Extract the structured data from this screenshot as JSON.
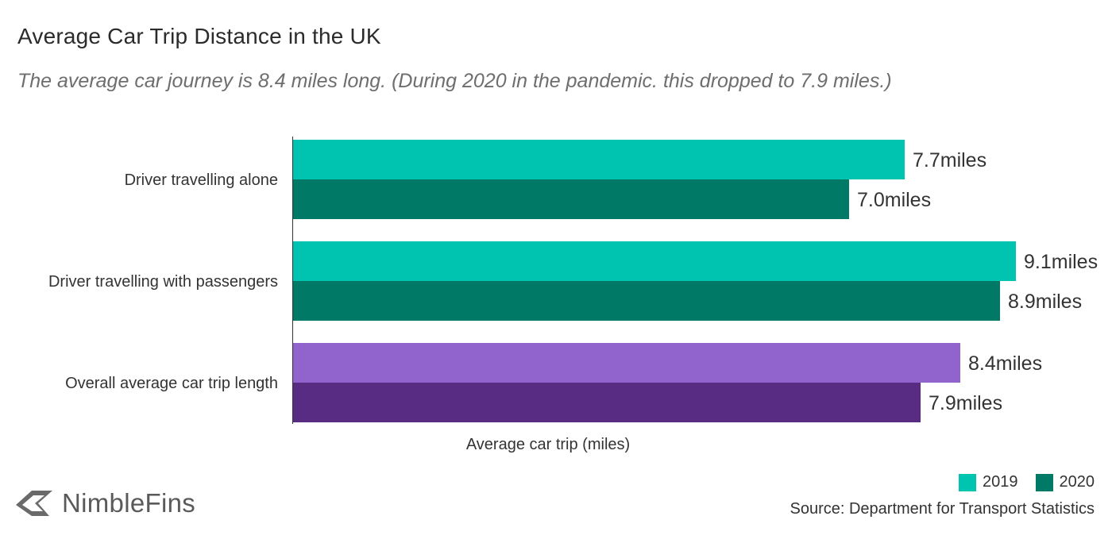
{
  "title": "Average Car Trip Distance in the UK",
  "subtitle": "The average car journey is 8.4 miles long. (During 2020 in the pandemic. this dropped to 7.9 miles.)",
  "brand": "NimbleFins",
  "source": "Source: Department for Transport Statistics",
  "legend": [
    {
      "label": "2019",
      "color": "#00c4b0"
    },
    {
      "label": "2020",
      "color": "#007a66"
    }
  ],
  "chart_data": {
    "type": "bar",
    "orientation": "horizontal",
    "xlabel": "Average car trip (miles)",
    "xlim": [
      0,
      9.3
    ],
    "unit_suffix": "miles",
    "categories": [
      "Driver travelling alone",
      "Driver travelling with passengers",
      "Overall average car trip length"
    ],
    "series": [
      {
        "name": "2019",
        "values": [
          7.7,
          9.1,
          8.4
        ],
        "colors": [
          "#00c4b0",
          "#00c4b0",
          "#9063cd"
        ]
      },
      {
        "name": "2020",
        "values": [
          7.0,
          8.9,
          7.9
        ],
        "colors": [
          "#007a66",
          "#007a66",
          "#582c83"
        ]
      }
    ]
  }
}
